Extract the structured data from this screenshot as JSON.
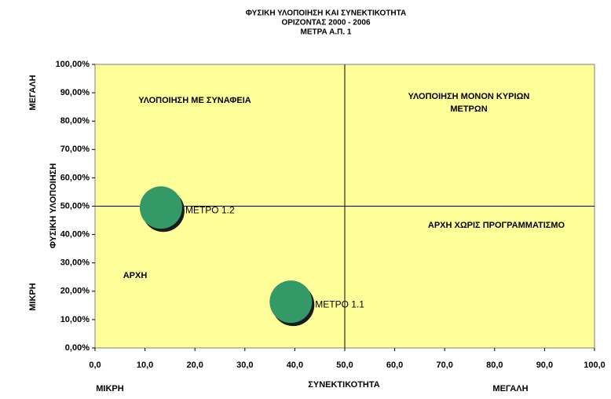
{
  "chart_data": {
    "type": "bubble",
    "title": [
      "ΦΥΣΙΚΗ ΥΛΟΠΟΙΗΣΗ ΚΑΙ ΣΥΝΕΚΤΙΚΟΤΗΤΑ",
      "ΟΡΙΖΟΝΤΑΣ 2000 - 2006",
      "ΜΕΤΡΑ Α.Π. 1"
    ],
    "x_label": "ΣΥΝΕΚΤΙΚΟΤΗΤΑ",
    "y_label": "ΦΥΣΙΚΗ ΥΛΟΠΟΙΗΣΗ",
    "x_range_labels": [
      "ΜΙΚΡΗ",
      "ΜΕΓΑΛΗ"
    ],
    "y_range_labels": [
      "ΜΙΚΡΗ",
      "ΜΕΓΑΛΗ"
    ],
    "annotations": [
      [
        "ΥΛΟΠΟΙΗΣΗ ΜΕ ΣΥΝΑΦΕΙΑ"
      ],
      [
        "ΥΛΟΠΟΙΗΣΗ ΜΟΝΟΝ ΚΥΡΙΩΝ",
        "ΜΕΤΡΩΝ"
      ],
      [
        "ΑΡΧΗ ΧΩΡΙΣ  ΠΡΟΓΡΑΜΜΑΤΙΣΜΟ"
      ],
      [
        "ΑΡΧΗ"
      ]
    ],
    "point_labels": [
      "ΜΕΤΡΟ 1.2",
      "ΜΕΤΡΟ 1.1"
    ],
    "x": [
      13.2,
      39.2
    ],
    "y": [
      49.5,
      16.3
    ],
    "color": "#339966",
    "plot_background": "#ffff99",
    "reference_lines": {
      "x": 50,
      "y": 50
    },
    "xlim": [
      0,
      100
    ],
    "ylim": [
      0,
      100
    ],
    "xticks": [
      {
        "value": 0,
        "label": "0,0"
      },
      {
        "value": 10,
        "label": "10,0"
      },
      {
        "value": 20,
        "label": "20,0"
      },
      {
        "value": 30,
        "label": "30,0"
      },
      {
        "value": 40,
        "label": "40,0"
      },
      {
        "value": 50,
        "label": "50,0"
      },
      {
        "value": 60,
        "label": "60,0"
      },
      {
        "value": 70,
        "label": "70,0"
      },
      {
        "value": 80,
        "label": "80,0"
      },
      {
        "value": 90,
        "label": "90,0"
      },
      {
        "value": 100,
        "label": "100,0"
      }
    ],
    "yticks": [
      {
        "value": 0,
        "label": "0,00%"
      },
      {
        "value": 10,
        "label": "10,00%"
      },
      {
        "value": 20,
        "label": "20,00%"
      },
      {
        "value": 30,
        "label": "30,00%"
      },
      {
        "value": 40,
        "label": "40,00%"
      },
      {
        "value": 50,
        "label": "50,00%"
      },
      {
        "value": 60,
        "label": "60,00%"
      },
      {
        "value": 70,
        "label": "70,00%"
      },
      {
        "value": 80,
        "label": "80,00%"
      },
      {
        "value": 90,
        "label": "90,00%"
      },
      {
        "value": 100,
        "label": "100,00%"
      }
    ]
  }
}
